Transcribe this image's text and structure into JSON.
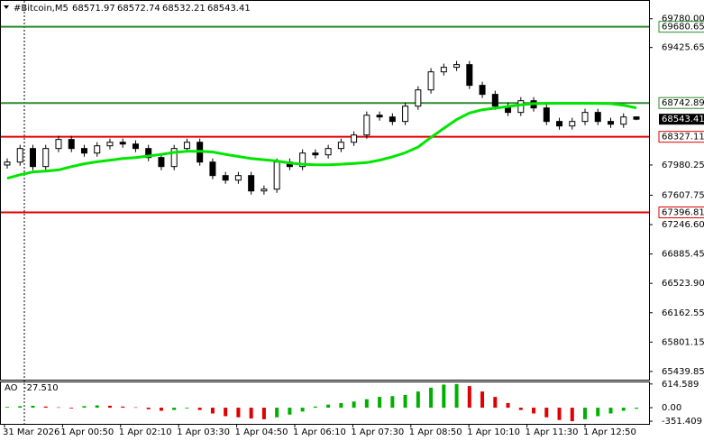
{
  "chart_data": {
    "type": "candlestick",
    "title": "#Bitcoin,M5",
    "header_values": [
      "68571.97",
      "68572.74",
      "68532.21",
      "68543.41"
    ],
    "x_labels": [
      "31 Mar 2026",
      "1 Apr 00:50",
      "1 Apr 02:10",
      "1 Apr 03:30",
      "1 Apr 04:50",
      "1 Apr 06:10",
      "1 Apr 07:30",
      "1 Apr 08:50",
      "1 Apr 10:10",
      "1 Apr 11:30",
      "1 Apr 12:50"
    ],
    "open": [
      67980,
      68016,
      68183,
      67961,
      68183,
      68294,
      68183,
      68127,
      68216,
      68260,
      68238,
      68183,
      68072,
      67961,
      68183,
      68260,
      68016,
      67850,
      67794,
      67850,
      67661,
      67683,
      68016,
      67961,
      68127,
      68105,
      68183,
      68260,
      68349,
      68593,
      68571,
      68516,
      68704,
      68904,
      69126,
      69182,
      69215,
      68960,
      68849,
      68704,
      68627,
      68771,
      68682,
      68516,
      68460,
      68516,
      68627,
      68516,
      68482,
      68571.97
    ],
    "high": [
      68061,
      68228,
      68228,
      68228,
      68339,
      68339,
      68228,
      68261,
      68305,
      68305,
      68283,
      68228,
      68117,
      68228,
      68305,
      68305,
      68061,
      67895,
      67895,
      67895,
      67728,
      68061,
      68061,
      68172,
      68172,
      68228,
      68305,
      68394,
      68638,
      68638,
      68616,
      68749,
      68949,
      69171,
      69227,
      69260,
      69260,
      69005,
      68894,
      68749,
      68816,
      68816,
      68727,
      68561,
      68561,
      68672,
      68672,
      68561,
      68616,
      68572.74
    ],
    "low": [
      67935,
      67971,
      67916,
      67916,
      68138,
      68138,
      68082,
      68082,
      68171,
      68193,
      68138,
      68027,
      67916,
      67916,
      68138,
      67971,
      67805,
      67749,
      67749,
      67616,
      67616,
      67638,
      67916,
      67916,
      68060,
      68060,
      68138,
      68215,
      68304,
      68526,
      68471,
      68471,
      68659,
      68859,
      69081,
      69137,
      68915,
      68804,
      68659,
      68582,
      68582,
      68637,
      68471,
      68415,
      68415,
      68471,
      68471,
      68437,
      68437,
      68532.21
    ],
    "close": [
      68016,
      68183,
      67961,
      68183,
      68294,
      68183,
      68127,
      68216,
      68260,
      68238,
      68183,
      68072,
      67961,
      68183,
      68260,
      68016,
      67850,
      67794,
      67850,
      67661,
      67683,
      68016,
      67961,
      68127,
      68105,
      68183,
      68260,
      68349,
      68593,
      68571,
      68516,
      68704,
      68904,
      69126,
      69182,
      69215,
      68960,
      68849,
      68704,
      68627,
      68771,
      68682,
      68516,
      68460,
      68516,
      68627,
      68516,
      68482,
      68571,
      68543.41
    ],
    "ma": {
      "color": "#00e600",
      "values": [
        67816,
        67860,
        67895,
        67905,
        67920,
        67960,
        67995,
        68020,
        68040,
        68060,
        68072,
        68090,
        68110,
        68135,
        68149,
        68149,
        68140,
        68110,
        68085,
        68060,
        68045,
        68030,
        68005,
        67990,
        67983,
        67983,
        67990,
        68000,
        68010,
        68040,
        68080,
        68130,
        68200,
        68320,
        68430,
        68540,
        68620,
        68660,
        68680,
        68700,
        68720,
        68735,
        68738,
        68740,
        68740,
        68740,
        68738,
        68735,
        68715,
        68682
      ]
    },
    "levels": [
      {
        "value": 69680.65,
        "color": "#2e8b2e"
      },
      {
        "value": 68742.89,
        "color": "#2e8b2e"
      },
      {
        "value": 68327.11,
        "color": "#e00000"
      },
      {
        "value": 67396.81,
        "color": "#e00000"
      }
    ],
    "ylim": [
      65350,
      70010
    ],
    "yticks": [
      {
        "value": 69780,
        "label": "69780.00"
      },
      69425.65,
      67980.25,
      67607.75,
      {
        "value": 67246.6,
        "label": "67246.60"
      },
      66885.45,
      {
        "value": 66523.9,
        "label": "66523.90"
      },
      66162.55,
      65801.15,
      65439.85
    ],
    "ao": {
      "name": "AO",
      "last_label": "-27.510",
      "up_color": "#00b000",
      "down_color": "#e00000",
      "ylim": [
        -420,
        680
      ],
      "yticks": [
        614.589,
        {
          "value": 0,
          "label": "0.00"
        },
        -351.409
      ],
      "values": [
        20,
        40,
        50,
        30,
        10,
        -20,
        40,
        60,
        50,
        30,
        10,
        -40,
        -80,
        -60,
        -20,
        -60,
        -150,
        -220,
        -250,
        -280,
        -300,
        -250,
        -180,
        -100,
        30,
        80,
        120,
        160,
        220,
        280,
        300,
        330,
        420,
        520,
        600,
        614,
        560,
        420,
        280,
        120,
        -60,
        -150,
        -250,
        -320,
        -351,
        -300,
        -220,
        -150,
        -80,
        -27.51
      ]
    }
  }
}
